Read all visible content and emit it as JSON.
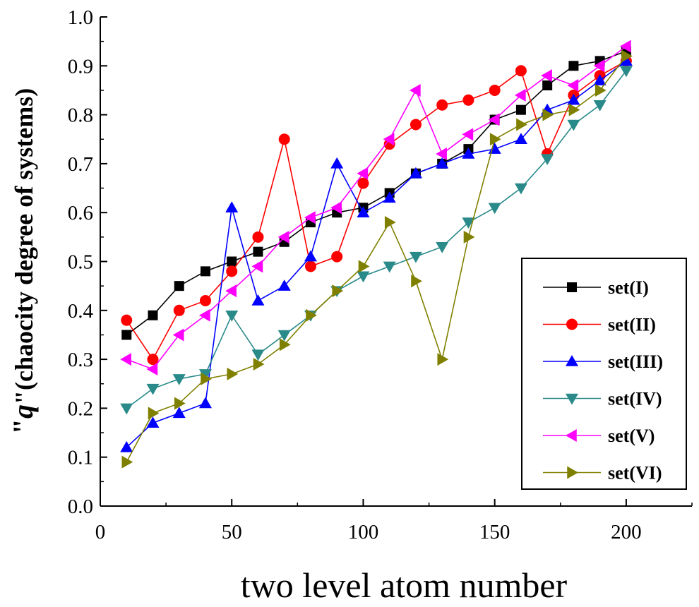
{
  "chart_data": {
    "type": "line",
    "xlabel": "two level atom number",
    "ylabel_quote_open": "\"",
    "ylabel_var": "q",
    "ylabel_rest": "\"(chaocity degree of systems)",
    "xlim": [
      0,
      225
    ],
    "ylim": [
      0.0,
      1.0
    ],
    "xticks": [
      0,
      50,
      100,
      150,
      200
    ],
    "xtick_labels": [
      "0",
      "50",
      "100",
      "150",
      "200"
    ],
    "yticks": [
      0.0,
      0.1,
      0.2,
      0.3,
      0.4,
      0.5,
      0.6,
      0.7,
      0.8,
      0.9,
      1.0
    ],
    "ytick_labels": [
      "0.0",
      "0.1",
      "0.2",
      "0.3",
      "0.4",
      "0.5",
      "0.6",
      "0.7",
      "0.8",
      "0.9",
      "1.0"
    ],
    "legend_position": "lower-right",
    "grid": false,
    "x": [
      10,
      20,
      30,
      40,
      50,
      60,
      70,
      80,
      90,
      100,
      110,
      120,
      130,
      140,
      150,
      160,
      170,
      180,
      190,
      200
    ],
    "series": [
      {
        "name": "set(I)",
        "color": "#000000",
        "marker": "square",
        "values": [
          0.35,
          0.39,
          0.45,
          0.48,
          0.5,
          0.52,
          0.54,
          0.58,
          0.6,
          0.61,
          0.64,
          0.68,
          0.7,
          0.73,
          0.79,
          0.81,
          0.86,
          0.9,
          0.91,
          0.93
        ]
      },
      {
        "name": "set(II)",
        "color": "#ff0000",
        "marker": "circle",
        "values": [
          0.38,
          0.3,
          0.4,
          0.42,
          0.48,
          0.55,
          0.75,
          0.49,
          0.51,
          0.66,
          0.74,
          0.78,
          0.82,
          0.83,
          0.85,
          0.89,
          0.72,
          0.84,
          0.88,
          0.91
        ]
      },
      {
        "name": "set(III)",
        "color": "#0000ff",
        "marker": "triangle-up",
        "values": [
          0.12,
          0.17,
          0.19,
          0.21,
          0.61,
          0.42,
          0.45,
          0.51,
          0.7,
          0.6,
          0.63,
          0.68,
          0.7,
          0.72,
          0.73,
          0.75,
          0.81,
          0.83,
          0.87,
          0.91
        ]
      },
      {
        "name": "set(IV)",
        "color": "#2a8a8a",
        "marker": "triangle-down",
        "values": [
          0.2,
          0.24,
          0.26,
          0.27,
          0.39,
          0.31,
          0.35,
          0.39,
          0.44,
          0.47,
          0.49,
          0.51,
          0.53,
          0.58,
          0.61,
          0.65,
          0.71,
          0.78,
          0.82,
          0.89
        ]
      },
      {
        "name": "set(V)",
        "color": "#ff00ff",
        "marker": "triangle-left",
        "values": [
          0.3,
          0.28,
          0.35,
          0.39,
          0.44,
          0.49,
          0.55,
          0.59,
          0.61,
          0.68,
          0.75,
          0.85,
          0.72,
          0.76,
          0.79,
          0.84,
          0.88,
          0.86,
          0.9,
          0.94
        ]
      },
      {
        "name": "set(VI)",
        "color": "#808000",
        "marker": "triangle-right",
        "values": [
          0.09,
          0.19,
          0.21,
          0.26,
          0.27,
          0.29,
          0.33,
          0.39,
          0.44,
          0.49,
          0.58,
          0.46,
          0.3,
          0.55,
          0.75,
          0.78,
          0.8,
          0.81,
          0.85,
          0.92
        ]
      }
    ]
  }
}
